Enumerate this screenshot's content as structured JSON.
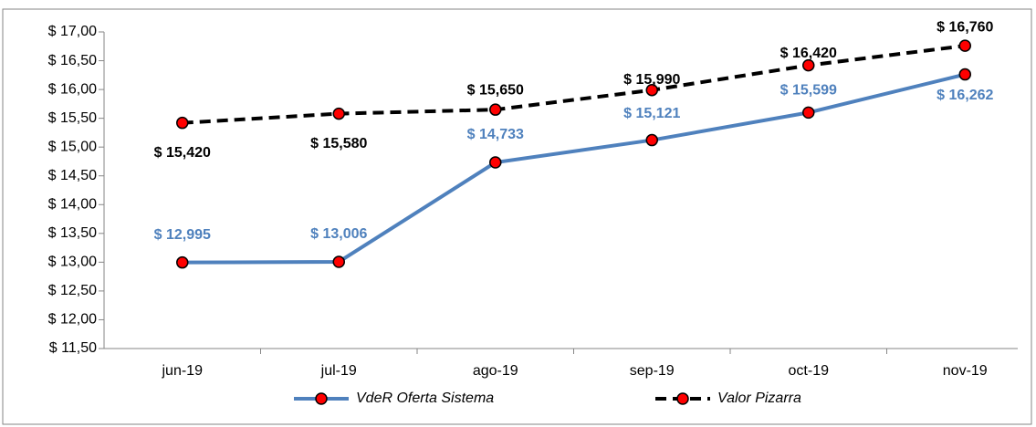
{
  "chart_data": {
    "type": "line",
    "categories": [
      "jun-19",
      "jul-19",
      "ago-19",
      "sep-19",
      "oct-19",
      "nov-19"
    ],
    "series": [
      {
        "name": "VdeR Oferta Sistema",
        "color": "#4f81bd",
        "dashed": false,
        "label_color": "#4f81bd",
        "values": [
          12.995,
          13.006,
          14.733,
          15.121,
          15.599,
          16.262
        ],
        "value_labels": [
          "$ 12,995",
          "$ 13,006",
          "$ 14,733",
          "$ 15,121",
          "$ 15,599",
          "$ 16,262"
        ]
      },
      {
        "name": "Valor Pizarra",
        "color": "#000000",
        "dashed": true,
        "label_color": "#000000",
        "values": [
          15.42,
          15.58,
          15.65,
          15.99,
          16.42,
          16.76
        ],
        "value_labels": [
          "$ 15,420",
          "$ 15,580",
          "$ 15,650",
          "$ 15,990",
          "$ 16,420",
          "$ 16,760"
        ]
      }
    ],
    "marker_color": "#ff0000",
    "ylim": [
      11.5,
      17.0
    ],
    "yticks": [
      {
        "value": 11.5,
        "label": "$ 11,50"
      },
      {
        "value": 12.0,
        "label": "$ 12,00"
      },
      {
        "value": 12.5,
        "label": "$ 12,50"
      },
      {
        "value": 13.0,
        "label": "$ 13,00"
      },
      {
        "value": 13.5,
        "label": "$ 13,50"
      },
      {
        "value": 14.0,
        "label": "$ 14,00"
      },
      {
        "value": 14.5,
        "label": "$ 14,50"
      },
      {
        "value": 15.0,
        "label": "$ 15,00"
      },
      {
        "value": 15.5,
        "label": "$ 15,50"
      },
      {
        "value": 16.0,
        "label": "$ 16,00"
      },
      {
        "value": 16.5,
        "label": "$ 16,50"
      },
      {
        "value": 17.0,
        "label": "$ 17,00"
      }
    ],
    "grid": false,
    "legend": "bottom"
  }
}
